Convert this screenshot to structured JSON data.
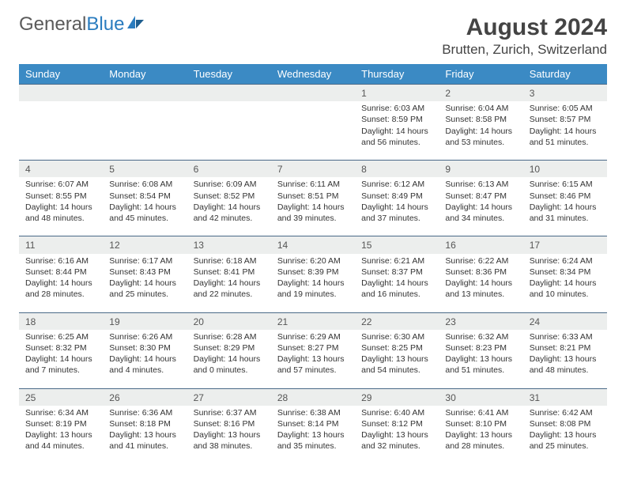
{
  "brand": {
    "part1": "General",
    "part2": "Blue"
  },
  "title": "August 2024",
  "location": "Brutten, Zurich, Switzerland",
  "colors": {
    "header_bg": "#3b8ac4",
    "header_text": "#ffffff",
    "daynum_bg": "#eceeed",
    "row_border": "#4a6a88",
    "brand_gray": "#5a5a5a",
    "brand_blue": "#2a7cbf"
  },
  "weekdays": [
    "Sunday",
    "Monday",
    "Tuesday",
    "Wednesday",
    "Thursday",
    "Friday",
    "Saturday"
  ],
  "weeks": [
    [
      null,
      null,
      null,
      null,
      {
        "n": "1",
        "r": "6:03 AM",
        "s": "8:59 PM",
        "d": "14 hours and 56 minutes."
      },
      {
        "n": "2",
        "r": "6:04 AM",
        "s": "8:58 PM",
        "d": "14 hours and 53 minutes."
      },
      {
        "n": "3",
        "r": "6:05 AM",
        "s": "8:57 PM",
        "d": "14 hours and 51 minutes."
      }
    ],
    [
      {
        "n": "4",
        "r": "6:07 AM",
        "s": "8:55 PM",
        "d": "14 hours and 48 minutes."
      },
      {
        "n": "5",
        "r": "6:08 AM",
        "s": "8:54 PM",
        "d": "14 hours and 45 minutes."
      },
      {
        "n": "6",
        "r": "6:09 AM",
        "s": "8:52 PM",
        "d": "14 hours and 42 minutes."
      },
      {
        "n": "7",
        "r": "6:11 AM",
        "s": "8:51 PM",
        "d": "14 hours and 39 minutes."
      },
      {
        "n": "8",
        "r": "6:12 AM",
        "s": "8:49 PM",
        "d": "14 hours and 37 minutes."
      },
      {
        "n": "9",
        "r": "6:13 AM",
        "s": "8:47 PM",
        "d": "14 hours and 34 minutes."
      },
      {
        "n": "10",
        "r": "6:15 AM",
        "s": "8:46 PM",
        "d": "14 hours and 31 minutes."
      }
    ],
    [
      {
        "n": "11",
        "r": "6:16 AM",
        "s": "8:44 PM",
        "d": "14 hours and 28 minutes."
      },
      {
        "n": "12",
        "r": "6:17 AM",
        "s": "8:43 PM",
        "d": "14 hours and 25 minutes."
      },
      {
        "n": "13",
        "r": "6:18 AM",
        "s": "8:41 PM",
        "d": "14 hours and 22 minutes."
      },
      {
        "n": "14",
        "r": "6:20 AM",
        "s": "8:39 PM",
        "d": "14 hours and 19 minutes."
      },
      {
        "n": "15",
        "r": "6:21 AM",
        "s": "8:37 PM",
        "d": "14 hours and 16 minutes."
      },
      {
        "n": "16",
        "r": "6:22 AM",
        "s": "8:36 PM",
        "d": "14 hours and 13 minutes."
      },
      {
        "n": "17",
        "r": "6:24 AM",
        "s": "8:34 PM",
        "d": "14 hours and 10 minutes."
      }
    ],
    [
      {
        "n": "18",
        "r": "6:25 AM",
        "s": "8:32 PM",
        "d": "14 hours and 7 minutes."
      },
      {
        "n": "19",
        "r": "6:26 AM",
        "s": "8:30 PM",
        "d": "14 hours and 4 minutes."
      },
      {
        "n": "20",
        "r": "6:28 AM",
        "s": "8:29 PM",
        "d": "14 hours and 0 minutes."
      },
      {
        "n": "21",
        "r": "6:29 AM",
        "s": "8:27 PM",
        "d": "13 hours and 57 minutes."
      },
      {
        "n": "22",
        "r": "6:30 AM",
        "s": "8:25 PM",
        "d": "13 hours and 54 minutes."
      },
      {
        "n": "23",
        "r": "6:32 AM",
        "s": "8:23 PM",
        "d": "13 hours and 51 minutes."
      },
      {
        "n": "24",
        "r": "6:33 AM",
        "s": "8:21 PM",
        "d": "13 hours and 48 minutes."
      }
    ],
    [
      {
        "n": "25",
        "r": "6:34 AM",
        "s": "8:19 PM",
        "d": "13 hours and 44 minutes."
      },
      {
        "n": "26",
        "r": "6:36 AM",
        "s": "8:18 PM",
        "d": "13 hours and 41 minutes."
      },
      {
        "n": "27",
        "r": "6:37 AM",
        "s": "8:16 PM",
        "d": "13 hours and 38 minutes."
      },
      {
        "n": "28",
        "r": "6:38 AM",
        "s": "8:14 PM",
        "d": "13 hours and 35 minutes."
      },
      {
        "n": "29",
        "r": "6:40 AM",
        "s": "8:12 PM",
        "d": "13 hours and 32 minutes."
      },
      {
        "n": "30",
        "r": "6:41 AM",
        "s": "8:10 PM",
        "d": "13 hours and 28 minutes."
      },
      {
        "n": "31",
        "r": "6:42 AM",
        "s": "8:08 PM",
        "d": "13 hours and 25 minutes."
      }
    ]
  ],
  "labels": {
    "sunrise_prefix": "Sunrise: ",
    "sunset_prefix": "Sunset: ",
    "daylight_prefix": "Daylight: "
  }
}
